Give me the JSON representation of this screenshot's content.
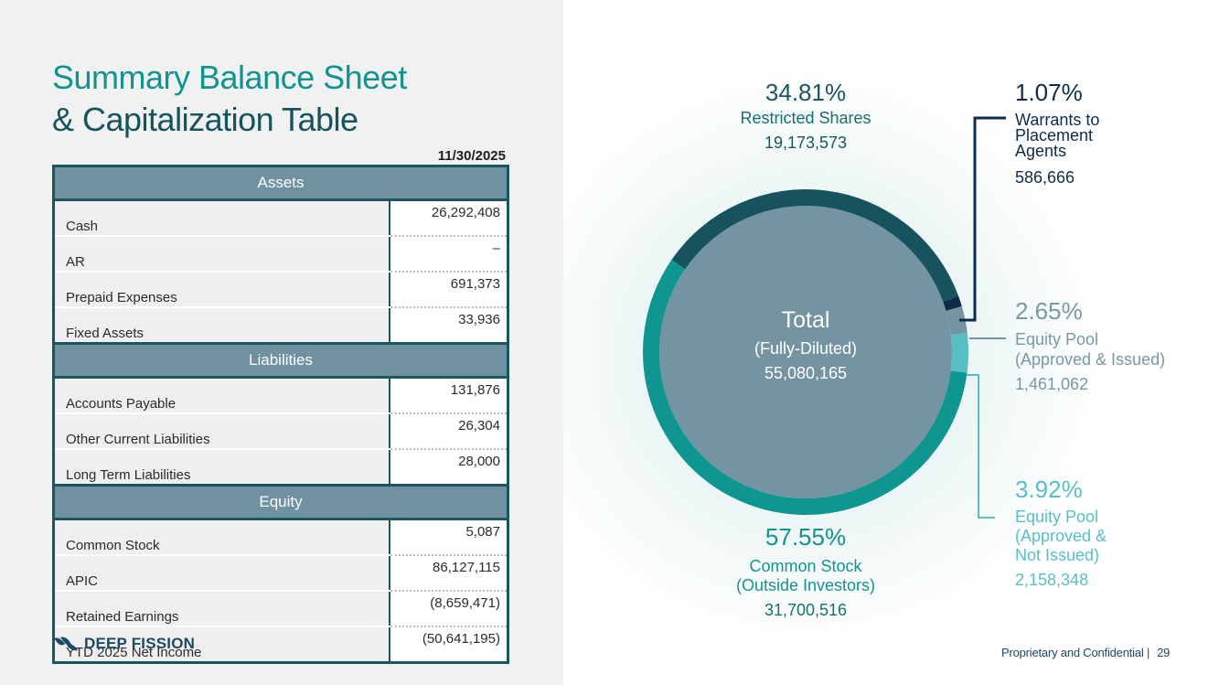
{
  "title": {
    "line1": "Summary Balance Sheet",
    "line2": "& Capitalization Table"
  },
  "date": "11/30/2025",
  "balance_sheet": {
    "sections": [
      {
        "header": "Assets",
        "rows": [
          {
            "label": "Cash",
            "value": "26,292,408"
          },
          {
            "label": "AR",
            "value": "–"
          },
          {
            "label": "Prepaid Expenses",
            "value": "691,373"
          },
          {
            "label": "Fixed Assets",
            "value": "33,936"
          }
        ]
      },
      {
        "header": "Liabilities",
        "rows": [
          {
            "label": "Accounts Payable",
            "value": "131,876"
          },
          {
            "label": "Other Current Liabilities",
            "value": "26,304"
          },
          {
            "label": "Long Term Liabilities",
            "value": "28,000"
          }
        ]
      },
      {
        "header": "Equity",
        "rows": [
          {
            "label": "Common Stock",
            "value": "5,087"
          },
          {
            "label": "APIC",
            "value": "86,127,115"
          },
          {
            "label": "Retained Earnings",
            "value": "(8,659,471)"
          },
          {
            "label": "YTD 2025 Net Income",
            "value": "(50,641,195)"
          }
        ]
      }
    ]
  },
  "logo": {
    "text": "DEEP FISSION"
  },
  "chart_data": {
    "type": "pie",
    "title": "Capitalization Table",
    "center": {
      "title": "Total",
      "subtitle": "(Fully-Diluted)",
      "value": "55,080,165"
    },
    "slices": [
      {
        "name": "Restricted Shares",
        "pct": 34.81,
        "pct_label": "34.81%",
        "value": 19173573,
        "value_label": "19,173,573",
        "color": "#17535e"
      },
      {
        "name": "Warrants to Placement Agents",
        "name_lines": [
          "Warrants to",
          "Placement",
          "Agents"
        ],
        "pct": 1.07,
        "pct_label": "1.07%",
        "value": 586666,
        "value_label": "586,666",
        "color": "#0e2c4a"
      },
      {
        "name": "Equity Pool (Approved & Issued)",
        "name_lines": [
          "Equity Pool",
          "(Approved & Issued)"
        ],
        "pct": 2.65,
        "pct_label": "2.65%",
        "value": 1461062,
        "value_label": "1,461,062",
        "color": "#7494a1"
      },
      {
        "name": "Equity Pool (Approved & Not Issued)",
        "name_lines": [
          "Equity Pool",
          "(Approved &",
          "Not Issued)"
        ],
        "pct": 3.92,
        "pct_label": "3.92%",
        "value": 2158348,
        "value_label": "2,158,348",
        "color": "#57c0c4"
      },
      {
        "name": "Common Stock (Outside Investors)",
        "name_lines": [
          "Common Stock",
          "(Outside Investors)"
        ],
        "pct": 57.55,
        "pct_label": "57.55%",
        "value": 31700516,
        "value_label": "31,700,516",
        "color": "#0f9690"
      }
    ]
  },
  "footer": {
    "text": "Proprietary and Confidential |",
    "page": "29"
  }
}
